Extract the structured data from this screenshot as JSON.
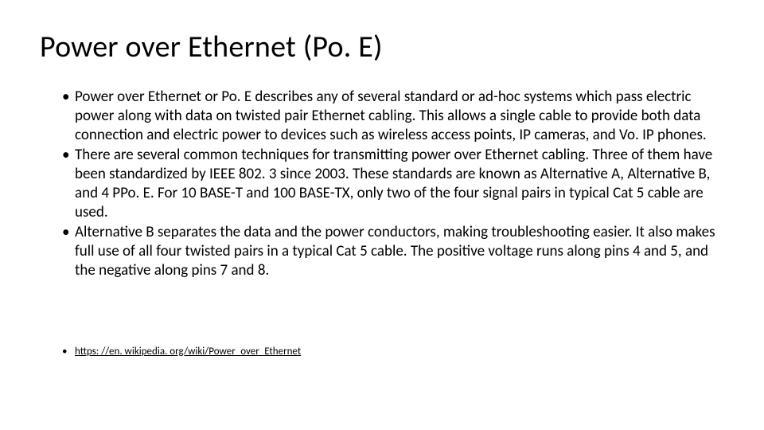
{
  "slide": {
    "title": "Power over Ethernet (Po. E)",
    "title_fontsize": 38,
    "title_color": "#000000",
    "background_color": "#ffffff",
    "bullets": [
      "Power over Ethernet or Po. E describes any of several standard or ad-hoc systems which pass electric power along with data on twisted pair Ethernet cabling. This allows a single cable to provide both data connection and electric power to devices such as wireless access points, IP cameras, and Vo. IP phones.",
      "There are several common techniques for transmitting power over Ethernet cabling. Three of them have been standardized by IEEE 802. 3 since 2003. These standards are known as Alternative A, Alternative B, and 4 PPo. E. For 10 BASE-T and 100 BASE-TX, only two of the four signal pairs in typical Cat 5 cable are used.",
      " Alternative B separates the data and the power conductors, making troubleshooting easier. It also makes full use of all four twisted pairs in a typical Cat 5 cable. The positive voltage runs along pins 4 and 5, and the negative along pins 7 and 8."
    ],
    "bullet_fontsize": 19,
    "bullet_color": "#000000",
    "reference": {
      "label": "https: //en. wikipedia. org/wiki/Power_over_Ethernet",
      "fontsize": 13,
      "underline": true
    }
  }
}
